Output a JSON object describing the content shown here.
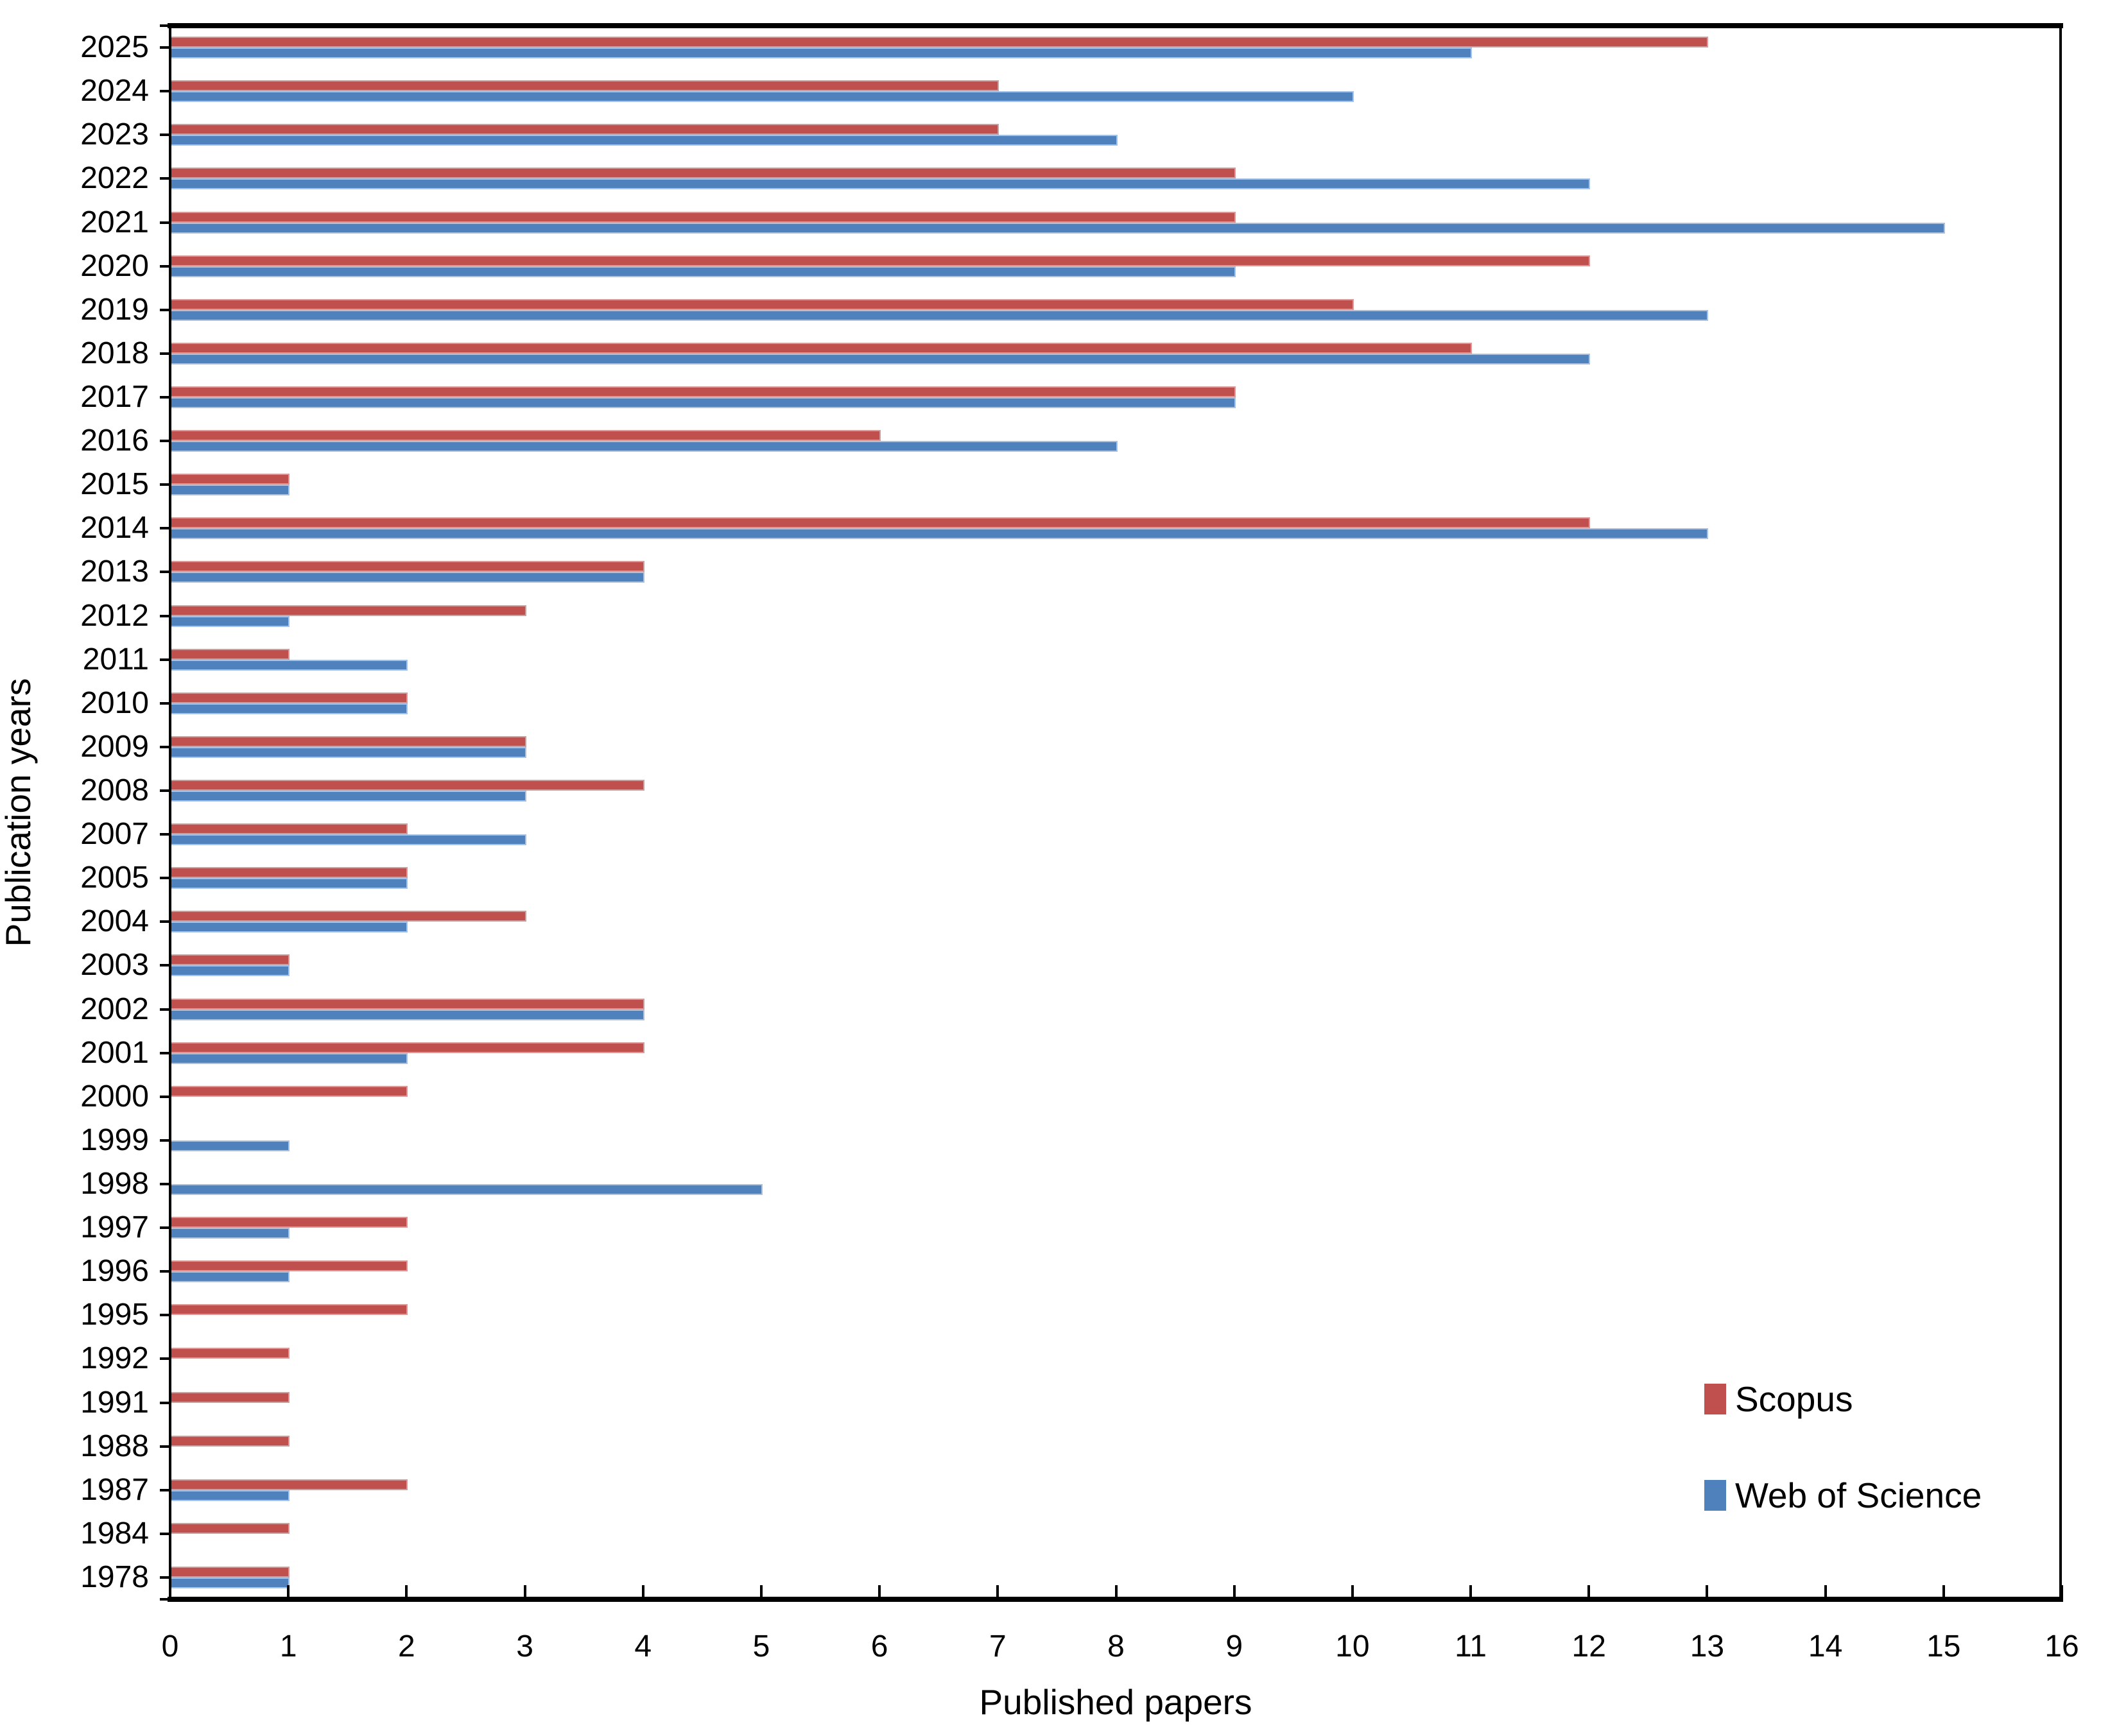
{
  "chart_data": {
    "type": "bar",
    "orientation": "horizontal",
    "xlabel": "Published papers",
    "ylabel": "Publication years",
    "xlim": [
      0,
      16
    ],
    "x_ticks": [
      "0",
      "1",
      "2",
      "3",
      "4",
      "5",
      "6",
      "7",
      "8",
      "9",
      "10",
      "11",
      "12",
      "13",
      "14",
      "15",
      "16"
    ],
    "grid": "off",
    "legend_position": "inside-lower-right",
    "categories": [
      "2025",
      "2024",
      "2023",
      "2022",
      "2021",
      "2020",
      "2019",
      "2018",
      "2017",
      "2016",
      "2015",
      "2014",
      "2013",
      "2012",
      "2011",
      "2010",
      "2009",
      "2008",
      "2007",
      "2005",
      "2004",
      "2003",
      "2002",
      "2001",
      "2000",
      "1999",
      "1998",
      "1997",
      "1996",
      "1995",
      "1992",
      "1991",
      "1988",
      "1987",
      "1984",
      "1978"
    ],
    "series": [
      {
        "name": "Scopus",
        "color": "#C0504D",
        "values": [
          13,
          7,
          7,
          9,
          9,
          12,
          10,
          11,
          9,
          6,
          1,
          12,
          4,
          3,
          1,
          2,
          3,
          4,
          2,
          2,
          3,
          1,
          4,
          4,
          2,
          0,
          0,
          2,
          2,
          2,
          1,
          1,
          1,
          2,
          1,
          1
        ]
      },
      {
        "name": "Web of Science",
        "color": "#4F81BD",
        "values": [
          11,
          10,
          8,
          12,
          15,
          9,
          13,
          12,
          9,
          8,
          1,
          13,
          4,
          1,
          2,
          2,
          3,
          3,
          3,
          2,
          2,
          1,
          4,
          2,
          0,
          1,
          5,
          1,
          1,
          0,
          0,
          0,
          0,
          1,
          0,
          1
        ]
      }
    ],
    "axis_color": "#000000"
  }
}
